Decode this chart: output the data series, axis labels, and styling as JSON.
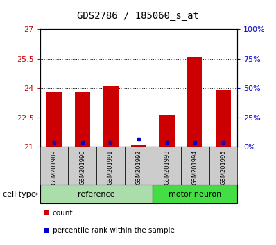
{
  "title": "GDS2786 / 185060_s_at",
  "samples": [
    "GSM201989",
    "GSM201990",
    "GSM201991",
    "GSM201992",
    "GSM201993",
    "GSM201994",
    "GSM201995"
  ],
  "red_bar_tops": [
    23.8,
    23.8,
    24.12,
    21.1,
    22.65,
    25.6,
    23.9
  ],
  "blue_square_values": [
    21.22,
    21.22,
    21.22,
    21.42,
    21.22,
    21.22,
    21.22
  ],
  "bar_base": 21.0,
  "ylim_left": [
    21,
    27
  ],
  "ylim_right": [
    0,
    100
  ],
  "yticks_left": [
    21,
    22.5,
    24,
    25.5,
    27
  ],
  "yticks_right": [
    0,
    25,
    50,
    75,
    100
  ],
  "ytick_labels_left": [
    "21",
    "22.5",
    "24",
    "25.5",
    "27"
  ],
  "ytick_labels_right": [
    "0%",
    "25%",
    "50%",
    "75%",
    "100%"
  ],
  "groups": [
    {
      "label": "reference",
      "indices": [
        0,
        1,
        2,
        3
      ],
      "color": "#aaddaa"
    },
    {
      "label": "motor neuron",
      "indices": [
        4,
        5,
        6
      ],
      "color": "#44dd44"
    }
  ],
  "red_color": "#cc0000",
  "blue_color": "#0000cc",
  "bar_width": 0.55,
  "cell_type_label": "cell type",
  "legend_items": [
    {
      "label": "count",
      "color": "#cc0000"
    },
    {
      "label": "percentile rank within the sample",
      "color": "#0000cc"
    }
  ],
  "left_axis_color": "#cc0000",
  "right_axis_color": "#0000cc",
  "label_area_color": "#cccccc",
  "title_font": "DejaVu Sans",
  "title_fontsize": 10
}
